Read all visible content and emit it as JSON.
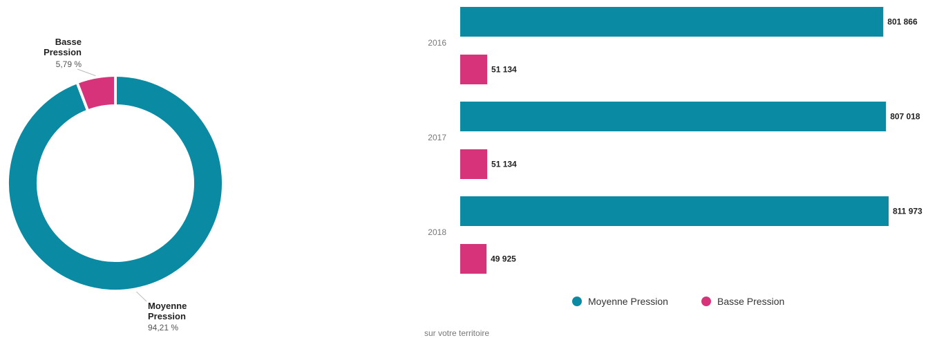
{
  "chart_data": [
    {
      "type": "pie",
      "variant": "donut",
      "slices": [
        {
          "name_line1": "Moyenne",
          "name_line2": "Pression",
          "value": 94.21,
          "pct_label": "94,21 %",
          "color": "#0a8aa3"
        },
        {
          "name_line1": "Basse",
          "name_line2": "Pression",
          "value": 5.79,
          "pct_label": "5,79 %",
          "color": "#d6337a"
        }
      ]
    },
    {
      "type": "bar",
      "orientation": "horizontal",
      "categories": [
        "2016",
        "2017",
        "2018"
      ],
      "series": [
        {
          "name": "Moyenne Pression",
          "color": "#0a8aa3",
          "values": [
            801866,
            807018,
            811973
          ],
          "value_labels": [
            "801 866",
            "807 018",
            "811 973"
          ]
        },
        {
          "name": "Basse Pression",
          "color": "#d6337a",
          "values": [
            51134,
            51134,
            49925
          ],
          "value_labels": [
            "51 134",
            "51 134",
            "49 925"
          ]
        }
      ],
      "xlim": [
        0,
        811973
      ],
      "grid": false,
      "legend_position": "bottom"
    }
  ],
  "footer": {
    "note": "sur votre territoire"
  }
}
